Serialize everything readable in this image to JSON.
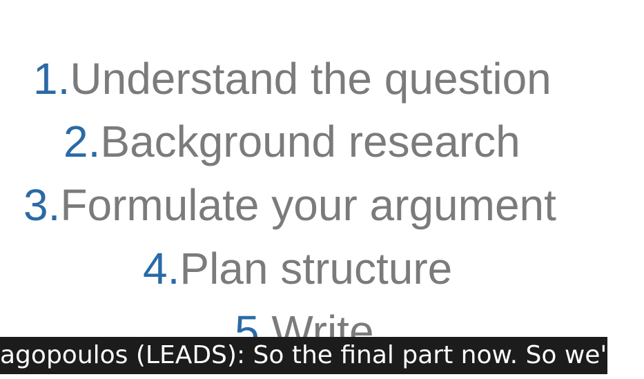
{
  "steps": [
    {
      "number": "1.",
      "label": "Understand the question"
    },
    {
      "number": "2.",
      "label": "Background research"
    },
    {
      "number": "3.",
      "label": "Formulate your argument"
    },
    {
      "number": "4.",
      "label": "Plan structure"
    },
    {
      "number": "5.",
      "label": "Write"
    }
  ],
  "caption": {
    "text": "agopoulos (LEADS): So the final part now. So we'v"
  },
  "colors": {
    "number": "#2a6aa6",
    "label": "#7b7b7b",
    "caption_bg": "#1c1c1c",
    "caption_text": "#ffffff"
  }
}
